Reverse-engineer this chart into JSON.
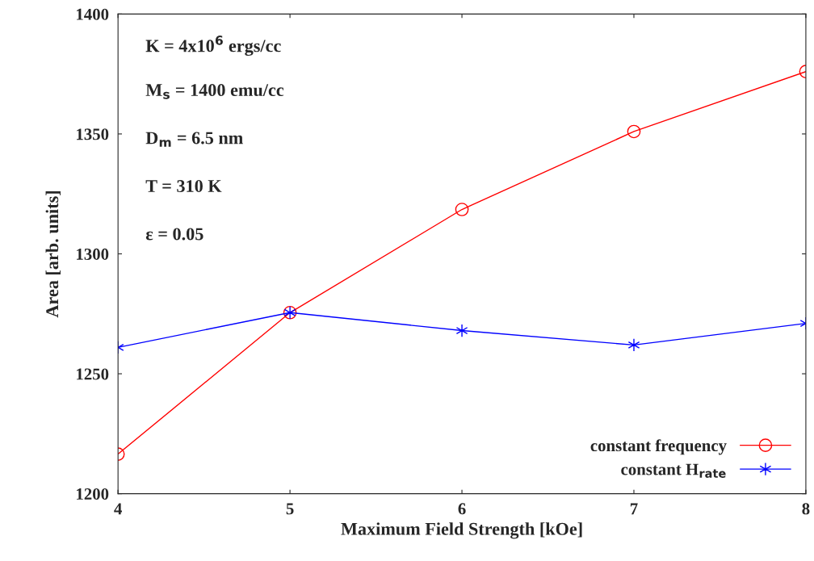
{
  "chart_data": {
    "type": "line",
    "xlabel": "Maximum Field Strength [kOe]",
    "ylabel": "Area [arb. units]",
    "x": [
      4,
      5,
      6,
      7,
      8
    ],
    "series": [
      {
        "name": "constant frequency",
        "color": "#ff0000",
        "marker": "circle",
        "values": [
          1216.5,
          1275.5,
          1318.5,
          1351,
          1376
        ]
      },
      {
        "name": "constant H$_{rate}$",
        "color": "#0000ff",
        "marker": "cross",
        "values": [
          1261,
          1275.5,
          1268,
          1262,
          1271
        ]
      }
    ],
    "xlim": [
      4,
      8
    ],
    "xticks": [
      4,
      5,
      6,
      7,
      8
    ],
    "ylim": [
      1200,
      1400
    ],
    "yticks": [
      1200,
      1250,
      1300,
      1350,
      1400
    ],
    "grid": false,
    "legend": "bottom right",
    "line_style": "solid",
    "annotations": [
      "K = 4x10$^{6}$ ergs/cc",
      "M$_{s}$ = 1400 emu/cc",
      "D$_{m}$ = 6.5 nm",
      "T = 310 K",
      "ε = 0.05"
    ]
  }
}
